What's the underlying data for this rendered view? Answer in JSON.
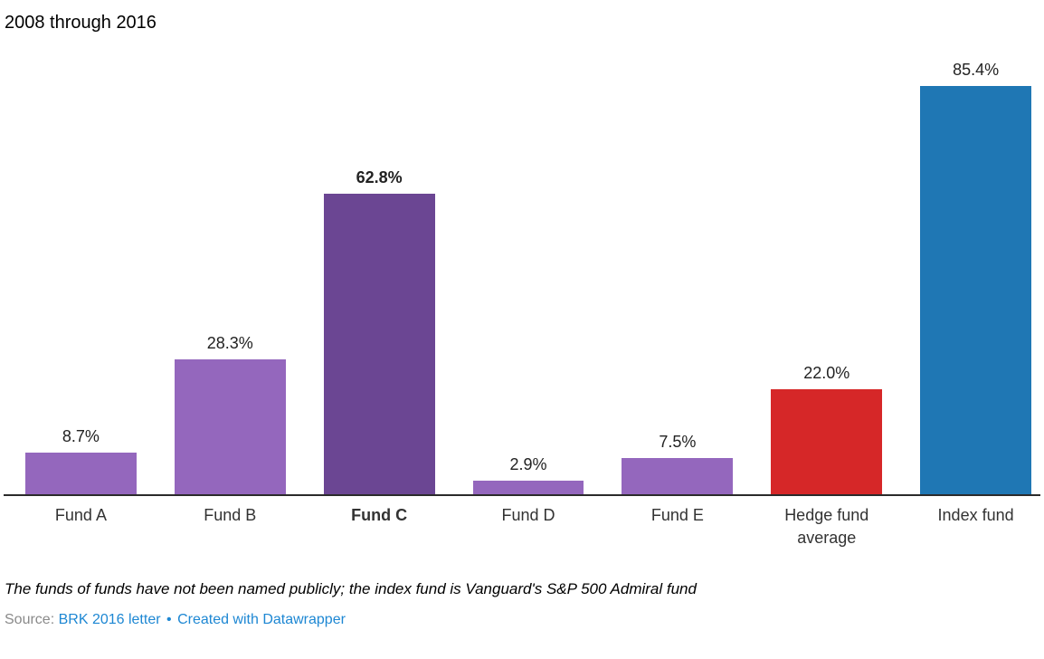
{
  "title": "2008 through 2016",
  "chart_data": {
    "type": "bar",
    "categories": [
      "Fund A",
      "Fund B",
      "Fund C",
      "Fund D",
      "Fund E",
      "Hedge fund average",
      "Index fund"
    ],
    "values": [
      8.7,
      28.3,
      62.8,
      2.9,
      7.5,
      22.0,
      85.4
    ],
    "value_labels": [
      "8.7%",
      "28.3%",
      "62.8%",
      "2.9%",
      "7.5%",
      "22.0%",
      "85.4%"
    ],
    "bar_colors": [
      "#9467bd",
      "#9467bd",
      "#6b4693",
      "#9467bd",
      "#9467bd",
      "#d62728",
      "#1f77b4"
    ],
    "emphasized_index": 2,
    "title": "2008 through 2016",
    "xlabel": "",
    "ylabel": "",
    "ylim": [
      0,
      90
    ],
    "grid": false,
    "legend": "none",
    "axis_line_color": "#2b2b2b",
    "value_label_color": "#222222",
    "category_label_color": "#333333"
  },
  "footnote": "The funds of funds have not been named publicly; the index fund is Vanguard's S&P 500 Admiral fund",
  "source": {
    "label": "Source:",
    "link1": "BRK 2016 letter",
    "separator": "•",
    "link2": "Created with Datawrapper"
  }
}
